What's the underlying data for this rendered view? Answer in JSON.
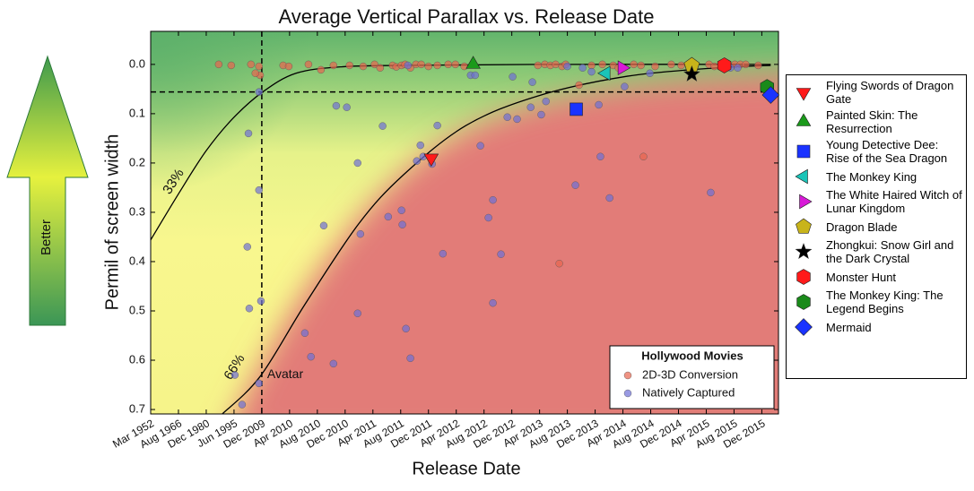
{
  "chart_data": {
    "type": "scatter",
    "title": "Average Vertical Parallax vs. Release Date",
    "xlabel": "Release Date",
    "ylabel": "Permil of screen width",
    "side_label": "Better",
    "xlim": [
      0,
      22.6
    ],
    "ylim": [
      -0.067,
      0.709
    ],
    "y_inverted": true,
    "xticks": [
      {
        "value": 0,
        "label": "Mar 1952"
      },
      {
        "value": 1,
        "label": "Aug 1966"
      },
      {
        "value": 2,
        "label": "Dec 1980"
      },
      {
        "value": 3,
        "label": "Jun 1995"
      },
      {
        "value": 4,
        "label": "Dec 2009"
      },
      {
        "value": 5,
        "label": "Apr 2010"
      },
      {
        "value": 6,
        "label": "Aug 2010"
      },
      {
        "value": 7,
        "label": "Dec 2010"
      },
      {
        "value": 8,
        "label": "Apr 2011"
      },
      {
        "value": 9,
        "label": "Aug 2011"
      },
      {
        "value": 10,
        "label": "Dec 2011"
      },
      {
        "value": 11,
        "label": "Apr 2012"
      },
      {
        "value": 12,
        "label": "Aug 2012"
      },
      {
        "value": 13,
        "label": "Dec 2012"
      },
      {
        "value": 14,
        "label": "Apr 2013"
      },
      {
        "value": 15,
        "label": "Aug 2013"
      },
      {
        "value": 16,
        "label": "Dec 2013"
      },
      {
        "value": 17,
        "label": "Apr 2014"
      },
      {
        "value": 18,
        "label": "Aug 2014"
      },
      {
        "value": 19,
        "label": "Dec 2014"
      },
      {
        "value": 20,
        "label": "Apr 2015"
      },
      {
        "value": 21,
        "label": "Aug 2015"
      },
      {
        "value": 22,
        "label": "Dec 2015"
      }
    ],
    "yticks": [
      {
        "value": 0,
        "label": "0.0"
      },
      0.1,
      0.2,
      0.3,
      0.4,
      0.5,
      0.6,
      0.7
    ],
    "legend_title": "Hollywood Movies",
    "series": [
      {
        "name": "2D-3D Conversion",
        "color": "#e8654f",
        "x": [
          2.45,
          2.9,
          3.61,
          3.9,
          3.94,
          3.77,
          4.77,
          4.97,
          5.68,
          6.13,
          6.58,
          7.16,
          7.65,
          8.06,
          8.26,
          8.71,
          8.84,
          9.03,
          9.16,
          9.35,
          9.55,
          9.74,
          10.0,
          10.32,
          10.71,
          10.97,
          11.29,
          13.94,
          14.19,
          14.39,
          14.58,
          14.81,
          14.94,
          15.42,
          14.71,
          17.74,
          15.87,
          16.26,
          16.65,
          16.84,
          17.39,
          17.65,
          18.16,
          18.74,
          19.1,
          20.1,
          20.29,
          20.65,
          21.03,
          21.23,
          21.42,
          21.87
        ],
        "y": [
          0,
          0.002,
          0,
          0.004,
          0.022,
          0.018,
          0.002,
          0.004,
          0,
          0.011,
          0.002,
          0.002,
          0.004,
          0,
          0.007,
          0.002,
          0.005,
          0.002,
          0,
          0.007,
          0,
          0,
          0.004,
          0.002,
          0,
          0,
          0.004,
          0.002,
          0,
          0.002,
          0,
          0.004,
          0,
          0.042,
          0.404,
          0.187,
          0.002,
          0,
          0.002,
          0.007,
          0,
          0.002,
          0.004,
          0,
          0.002,
          0,
          0.004,
          0.002,
          0,
          0,
          0,
          0.002
        ]
      },
      {
        "name": "Natively Captured",
        "color": "#6d6fd6",
        "x": [
          3.52,
          3.9,
          3.9,
          3.48,
          3.55,
          3.97,
          3.9,
          3.03,
          3.29,
          6.68,
          7.06,
          7.45,
          6.23,
          7.55,
          5.55,
          5.77,
          6.58,
          7.45,
          8.35,
          8.55,
          9.03,
          9.06,
          9.19,
          9.35,
          9.71,
          9.58,
          9.81,
          10.13,
          10.32,
          10.52,
          11.52,
          11.68,
          11.87,
          12.16,
          12.32,
          12.61,
          12.32,
          12.84,
          13.19,
          13.03,
          13.68,
          14.06,
          14.23,
          15.29,
          15.55,
          15.87,
          16.13,
          16.19,
          16.52,
          17.06,
          17.97,
          20.16,
          20.87,
          21.13,
          13.74,
          15.0,
          9.26
        ],
        "y": [
          0.14,
          0.056,
          0.255,
          0.37,
          0.495,
          0.48,
          0.647,
          0.63,
          0.69,
          0.084,
          0.087,
          0.2,
          0.327,
          0.344,
          0.545,
          0.593,
          0.607,
          0.505,
          0.125,
          0.309,
          0.296,
          0.325,
          0.536,
          0.596,
          0.164,
          0.196,
          0.187,
          0.202,
          0.124,
          0.384,
          0.022,
          0.022,
          0.165,
          0.311,
          0.275,
          0.385,
          0.484,
          0.107,
          0.111,
          0.025,
          0.087,
          0.102,
          0.075,
          0.245,
          0.007,
          0.015,
          0.082,
          0.187,
          0.271,
          0.045,
          0.018,
          0.26,
          0.007,
          0.007,
          0.036,
          0.004,
          0.002
        ]
      }
    ],
    "highlights": [
      {
        "name": "Flying Swords of Dragon Gate",
        "color": "#ff1a1a",
        "marker": "v",
        "x": 10.1,
        "y": 0.19
      },
      {
        "name": "Painted Skin: The Resurrection",
        "color": "#1a9a1a",
        "marker": "^",
        "x": 11.61,
        "y": 0.0
      },
      {
        "name": "Young Detective Dee: Rise of the Sea Dragon",
        "color": "#1a33ff",
        "marker": "s",
        "x": 15.32,
        "y": 0.091
      },
      {
        "name": "The Monkey King",
        "color": "#1ac4b8",
        "marker": "<",
        "x": 16.39,
        "y": 0.018
      },
      {
        "name": "The White Haired Witch of Lunar Kingdom",
        "color": "#d81ad8",
        "marker": ">",
        "x": 16.97,
        "y": 0.007
      },
      {
        "name": "Dragon Blade",
        "color": "#c8b41a",
        "marker": "p",
        "x": 19.48,
        "y": 0.002
      },
      {
        "name": "Zhongkui: Snow Girl and the Dark Crystal",
        "color": "#000000",
        "marker": "*",
        "x": 19.48,
        "y": 0.02
      },
      {
        "name": "Monster Hunt",
        "color": "#ff1a1a",
        "marker": "h",
        "x": 20.65,
        "y": 0.002
      },
      {
        "name": "The Monkey King: The Legend Begins",
        "color": "#1a8a1a",
        "marker": "h",
        "x": 22.19,
        "y": 0.046
      },
      {
        "name": "Mermaid",
        "color": "#1a33ff",
        "marker": "D",
        "x": 22.32,
        "y": 0.062
      }
    ],
    "curves": [
      {
        "label": "33%",
        "x": [
          0,
          1.03,
          2,
          2.97,
          4.03,
          5.23,
          6.84,
          9.1,
          13.94,
          22.32
        ],
        "y": [
          0.356,
          0.26,
          0.175,
          0.109,
          0.056,
          0.018,
          0.005,
          0.002,
          0,
          0
        ]
      },
      {
        "label": "66%",
        "x": [
          2.58,
          3.94,
          5.55,
          7.48,
          9.1,
          11.35,
          13.94,
          17.16,
          20.39,
          22.32
        ],
        "y": [
          0.709,
          0.633,
          0.487,
          0.324,
          0.224,
          0.124,
          0.064,
          0.024,
          0.007,
          0.002
        ]
      }
    ],
    "reference": {
      "x": 4,
      "y": 0.056,
      "label": "Avatar"
    }
  }
}
